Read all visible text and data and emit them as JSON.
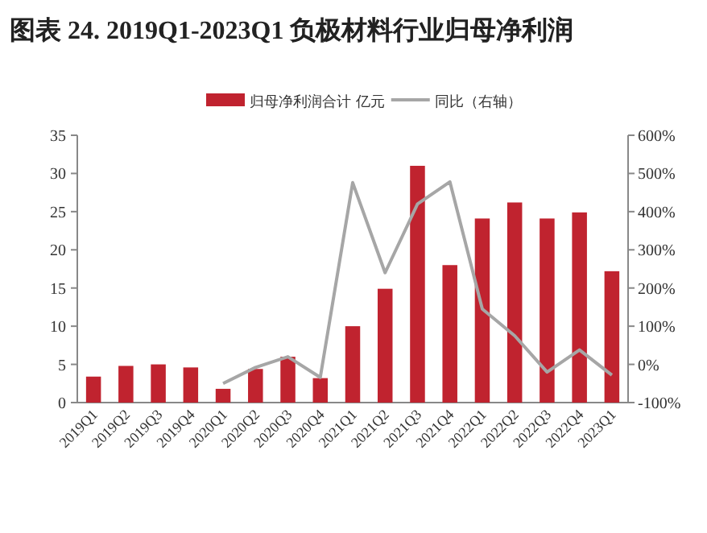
{
  "chart_data": {
    "type": "bar",
    "title": "图表 24. 2019Q1-2023Q1 负极材料行业归母净利润",
    "categories": [
      "2019Q1",
      "2019Q2",
      "2019Q3",
      "2019Q4",
      "2020Q1",
      "2020Q2",
      "2020Q3",
      "2020Q4",
      "2021Q1",
      "2021Q2",
      "2021Q3",
      "2021Q4",
      "2022Q1",
      "2022Q2",
      "2022Q3",
      "2022Q4",
      "2023Q1"
    ],
    "series": [
      {
        "name": "归母净利润合计 亿元",
        "color": "#c0232f",
        "values": [
          3.4,
          4.8,
          5.0,
          4.6,
          1.8,
          4.4,
          6.0,
          3.2,
          10.0,
          14.9,
          31.0,
          18.0,
          24.1,
          26.2,
          24.1,
          24.9,
          17.2
        ]
      },
      {
        "name": "同比（右轴）",
        "type": "line",
        "axis": "y2",
        "color": "#a6a6a6",
        "values": [
          null,
          null,
          null,
          null,
          -50,
          -8,
          20,
          -34,
          476,
          240,
          420,
          478,
          145,
          75,
          -20,
          38,
          -28
        ]
      }
    ],
    "ylim": [
      0,
      35
    ],
    "yticks": [
      0,
      5,
      10,
      15,
      20,
      25,
      30,
      35
    ],
    "y2lim": [
      -100,
      600
    ],
    "y2ticks": [
      {
        "value": -100,
        "label": "-100%"
      },
      {
        "value": 0,
        "label": "0%"
      },
      {
        "value": 100,
        "label": "100%"
      },
      {
        "value": 200,
        "label": "200%"
      },
      {
        "value": 300,
        "label": "300%"
      },
      {
        "value": 400,
        "label": "400%"
      },
      {
        "value": 500,
        "label": "500%"
      },
      {
        "value": 600,
        "label": "600%"
      }
    ],
    "grid": false,
    "legend": "top",
    "marker": "none"
  }
}
